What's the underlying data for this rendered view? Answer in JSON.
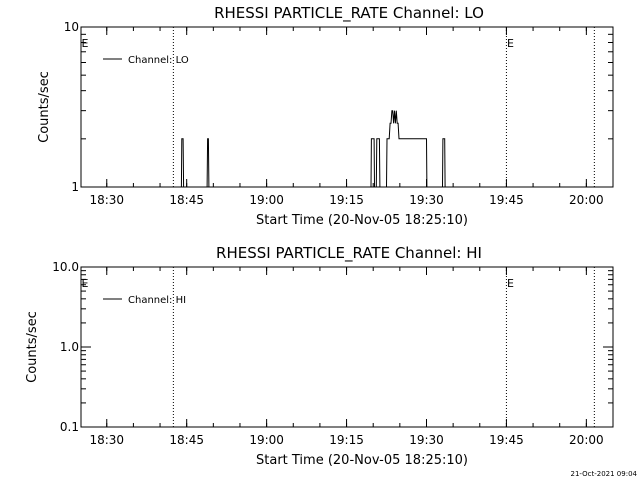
{
  "chart_data": [
    {
      "type": "line",
      "title": "RHESSI PARTICLE_RATE Channel: LO",
      "xlabel": "Start Time (20-Nov-05 18:25:10)",
      "ylabel": "Counts/sec",
      "y_scale": "log",
      "ylim": [
        1,
        10
      ],
      "y_ticks": [
        "1",
        "10"
      ],
      "xlim": [
        "18:25:10",
        "20:05:00"
      ],
      "x_ticks": [
        "18:30",
        "18:45",
        "19:00",
        "19:15",
        "19:30",
        "19:45",
        "20:00"
      ],
      "legend": {
        "position": "top-left",
        "entries": [
          "Channel: LO"
        ]
      },
      "series": [
        {
          "name": "Channel: LO",
          "x": [
            "18:25:10",
            "18:44:00",
            "18:44:05",
            "18:44:20",
            "18:44:25",
            "18:48:50",
            "18:48:55",
            "18:49:05",
            "18:49:10",
            "19:19:35",
            "19:19:40",
            "19:20:10",
            "19:20:15",
            "19:20:35",
            "19:20:40",
            "19:21:10",
            "19:21:15",
            "19:21:30",
            "19:21:35",
            "19:22:30",
            "19:22:35",
            "19:23:00",
            "19:23:10",
            "19:23:20",
            "19:23:30",
            "19:23:40",
            "19:23:50",
            "19:24:00",
            "19:24:10",
            "19:24:20",
            "19:24:30",
            "19:24:40",
            "19:24:50",
            "19:25:00",
            "19:25:20",
            "19:25:30",
            "19:30:00",
            "19:30:05",
            "19:33:00",
            "19:33:05",
            "19:33:25",
            "19:33:30",
            "20:05:00"
          ],
          "y": [
            1,
            1,
            2,
            2,
            1,
            1,
            2,
            2,
            1,
            1,
            2,
            2,
            1,
            1,
            2,
            2,
            1,
            1,
            1,
            1,
            2,
            2,
            2.5,
            2.5,
            3,
            3,
            2.5,
            3,
            2.5,
            3,
            2.5,
            2.5,
            2,
            2,
            2,
            2,
            2,
            1,
            1,
            2,
            2,
            1,
            1
          ]
        }
      ],
      "markers": [
        {
          "time": "18:42:30",
          "label": ""
        },
        {
          "time": "19:45:00",
          "label": "E"
        },
        {
          "time": "20:01:30",
          "label": ""
        },
        {
          "time": "18:25:10",
          "label": "E"
        }
      ]
    },
    {
      "type": "line",
      "title": "RHESSI PARTICLE_RATE Channel: HI",
      "xlabel": "Start Time (20-Nov-05 18:25:10)",
      "ylabel": "Counts/sec",
      "y_scale": "log",
      "ylim": [
        0.1,
        10
      ],
      "y_ticks": [
        "0.1",
        "1.0",
        "10.0"
      ],
      "xlim": [
        "18:25:10",
        "20:05:00"
      ],
      "x_ticks": [
        "18:30",
        "18:45",
        "19:00",
        "19:15",
        "19:30",
        "19:45",
        "20:00"
      ],
      "legend": {
        "position": "top-left",
        "entries": [
          "Channel: HI"
        ]
      },
      "series": [
        {
          "name": "Channel: HI",
          "x": [],
          "y": []
        }
      ],
      "markers": [
        {
          "time": "18:42:30",
          "label": ""
        },
        {
          "time": "19:45:00",
          "label": "E"
        },
        {
          "time": "20:01:30",
          "label": ""
        },
        {
          "time": "18:25:10",
          "label": "E"
        }
      ]
    }
  ],
  "footer": {
    "timestamp": "21-Oct-2021 09:04"
  }
}
